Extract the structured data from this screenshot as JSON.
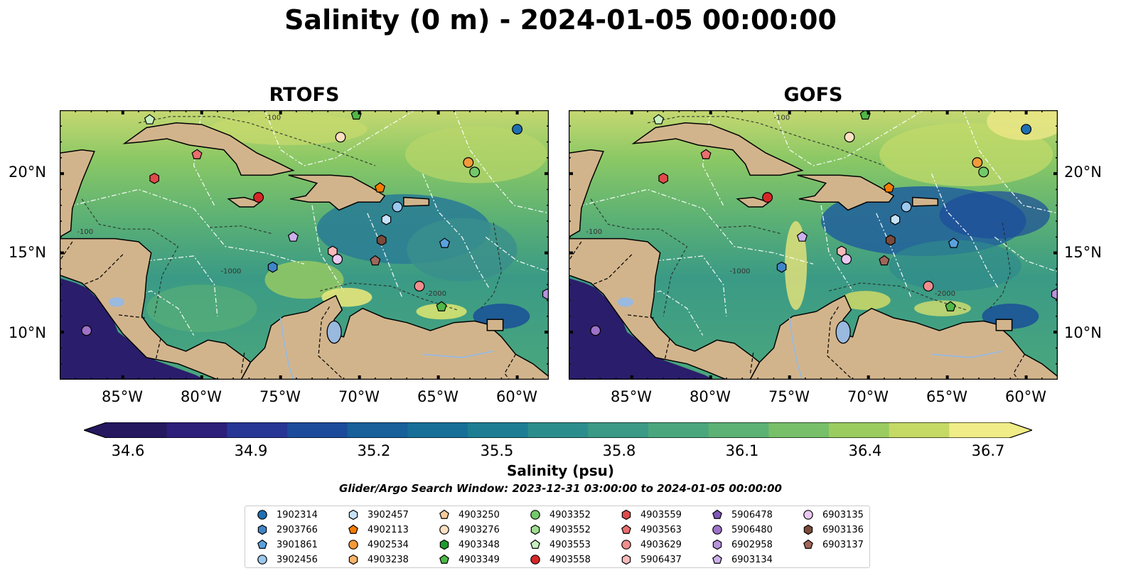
{
  "title": "Salinity (0 m) - 2024-01-05 00:00:00",
  "panels": [
    {
      "title": "RTOFS"
    },
    {
      "title": "GOFS"
    }
  ],
  "map": {
    "lon_range": [
      -89,
      -58
    ],
    "lat_range": [
      7,
      24
    ],
    "lon_ticks": [
      "85°W",
      "80°W",
      "75°W",
      "70°W",
      "65°W",
      "60°W"
    ],
    "lat_ticks": [
      "20°N",
      "15°N",
      "10°N"
    ],
    "lon_tick_values": [
      -85,
      -80,
      -75,
      -70,
      -65,
      -60
    ],
    "lat_tick_values": [
      20,
      15,
      10
    ],
    "contour_labels": [
      "-100",
      "-1000",
      "-2000"
    ],
    "colors": {
      "land": "#d2b48c",
      "lake": "#99b9df",
      "pacific": "#2a1d6b"
    }
  },
  "colorbar": {
    "label": "Salinity (psu)",
    "ticks": [
      "34.6",
      "34.9",
      "35.2",
      "35.5",
      "35.8",
      "36.1",
      "36.4",
      "36.7"
    ],
    "min": 34.6,
    "max": 36.7,
    "colors": [
      "#26185f",
      "#2c1f7a",
      "#273595",
      "#1c4b9b",
      "#17609a",
      "#176f97",
      "#1d7e93",
      "#2c8e8c",
      "#3a9a85",
      "#4aa77d",
      "#5cb174",
      "#77bf69",
      "#9acc5f",
      "#c5d965",
      "#f0ec87"
    ]
  },
  "search_window": "Glider/Argo Search Window: 2023-12-31 03:00:00 to 2024-01-05 00:00:00",
  "legend": [
    {
      "id": "1902314",
      "marker": "circle",
      "color": "#1f6fb2"
    },
    {
      "id": "2903766",
      "marker": "hexagon",
      "color": "#3f85c8"
    },
    {
      "id": "3901861",
      "marker": "pentagon",
      "color": "#5aa2df"
    },
    {
      "id": "3902456",
      "marker": "circle",
      "color": "#9cc8ee"
    },
    {
      "id": "3902457",
      "marker": "hexagon",
      "color": "#c6e2f8"
    },
    {
      "id": "4902113",
      "marker": "pentagon",
      "color": "#f57c00"
    },
    {
      "id": "4902534",
      "marker": "circle",
      "color": "#f59a3a"
    },
    {
      "id": "4903238",
      "marker": "hexagon",
      "color": "#f8b46a"
    },
    {
      "id": "4903250",
      "marker": "pentagon",
      "color": "#fbcb9a"
    },
    {
      "id": "4903276",
      "marker": "circle",
      "color": "#fde0c2"
    },
    {
      "id": "4903348",
      "marker": "hexagon",
      "color": "#1f9a2e"
    },
    {
      "id": "4903349",
      "marker": "pentagon",
      "color": "#4fb848"
    },
    {
      "id": "4903352",
      "marker": "circle",
      "color": "#73c96a"
    },
    {
      "id": "4903552",
      "marker": "hexagon",
      "color": "#9fdc91"
    },
    {
      "id": "4903553",
      "marker": "pentagon",
      "color": "#c8f0bf"
    },
    {
      "id": "4903558",
      "marker": "circle",
      "color": "#d62728"
    },
    {
      "id": "4903559",
      "marker": "hexagon",
      "color": "#e04a4a"
    },
    {
      "id": "4903563",
      "marker": "pentagon",
      "color": "#ea6e6e"
    },
    {
      "id": "4903629",
      "marker": "circle",
      "color": "#f08d8d"
    },
    {
      "id": "5906437",
      "marker": "hexagon",
      "color": "#f9b9b9"
    },
    {
      "id": "5906478",
      "marker": "pentagon",
      "color": "#8058b6"
    },
    {
      "id": "5906480",
      "marker": "circle",
      "color": "#9d72c8"
    },
    {
      "id": "6902958",
      "marker": "hexagon",
      "color": "#b793dc"
    },
    {
      "id": "6903134",
      "marker": "pentagon",
      "color": "#ccb0ec"
    },
    {
      "id": "6903135",
      "marker": "circle",
      "color": "#eac8f2"
    },
    {
      "id": "6903136",
      "marker": "hexagon",
      "color": "#7b4a3a"
    },
    {
      "id": "6903137",
      "marker": "pentagon",
      "color": "#a0665a"
    }
  ],
  "floats_rtofs": [
    {
      "id": "1902314",
      "lon": -60.0,
      "lat": 22.8
    },
    {
      "id": "4903553",
      "lon": -83.3,
      "lat": 23.4
    },
    {
      "id": "4903349",
      "lon": -70.2,
      "lat": 23.7
    },
    {
      "id": "4903276",
      "lon": -71.2,
      "lat": 22.3
    },
    {
      "id": "4903563",
      "lon": -80.3,
      "lat": 21.2
    },
    {
      "id": "4903559",
      "lon": -83.0,
      "lat": 19.7
    },
    {
      "id": "4902534",
      "lon": -63.1,
      "lat": 20.7
    },
    {
      "id": "4903352",
      "lon": -62.7,
      "lat": 20.1
    },
    {
      "id": "4902113",
      "lon": -68.7,
      "lat": 19.1
    },
    {
      "id": "4903558",
      "lon": -76.4,
      "lat": 18.5
    },
    {
      "id": "3902456",
      "lon": -67.6,
      "lat": 17.9
    },
    {
      "id": "3902457",
      "lon": -68.3,
      "lat": 17.1
    },
    {
      "id": "6903134",
      "lon": -74.2,
      "lat": 16.0
    },
    {
      "id": "6903136",
      "lon": -68.6,
      "lat": 15.8
    },
    {
      "id": "3901861",
      "lon": -64.6,
      "lat": 15.6
    },
    {
      "id": "5906437",
      "lon": -71.7,
      "lat": 15.1
    },
    {
      "id": "6903135",
      "lon": -71.4,
      "lat": 14.6
    },
    {
      "id": "6903137",
      "lon": -69.0,
      "lat": 14.5
    },
    {
      "id": "2903766",
      "lon": -75.5,
      "lat": 14.1
    },
    {
      "id": "4903629",
      "lon": -66.2,
      "lat": 12.9
    },
    {
      "id": "4903349",
      "lon": -64.8,
      "lat": 11.6
    },
    {
      "id": "6902958",
      "lon": -58.1,
      "lat": 12.4
    },
    {
      "id": "5906480",
      "lon": -87.3,
      "lat": 10.1
    }
  ],
  "floats_gofs": [
    {
      "id": "1902314",
      "lon": -60.0,
      "lat": 22.8
    },
    {
      "id": "4903553",
      "lon": -83.3,
      "lat": 23.4
    },
    {
      "id": "4903349",
      "lon": -70.2,
      "lat": 23.7
    },
    {
      "id": "4903276",
      "lon": -71.2,
      "lat": 22.3
    },
    {
      "id": "4903563",
      "lon": -80.3,
      "lat": 21.2
    },
    {
      "id": "4903559",
      "lon": -83.0,
      "lat": 19.7
    },
    {
      "id": "4902534",
      "lon": -63.1,
      "lat": 20.7
    },
    {
      "id": "4903352",
      "lon": -62.7,
      "lat": 20.1
    },
    {
      "id": "4902113",
      "lon": -68.7,
      "lat": 19.1
    },
    {
      "id": "4903558",
      "lon": -76.4,
      "lat": 18.5
    },
    {
      "id": "3902456",
      "lon": -67.6,
      "lat": 17.9
    },
    {
      "id": "3902457",
      "lon": -68.3,
      "lat": 17.1
    },
    {
      "id": "6903134",
      "lon": -74.2,
      "lat": 16.0
    },
    {
      "id": "6903136",
      "lon": -68.6,
      "lat": 15.8
    },
    {
      "id": "3901861",
      "lon": -64.6,
      "lat": 15.6
    },
    {
      "id": "5906437",
      "lon": -71.7,
      "lat": 15.1
    },
    {
      "id": "6903135",
      "lon": -71.4,
      "lat": 14.6
    },
    {
      "id": "6903137",
      "lon": -69.0,
      "lat": 14.5
    },
    {
      "id": "2903766",
      "lon": -75.5,
      "lat": 14.1
    },
    {
      "id": "4903629",
      "lon": -66.2,
      "lat": 12.9
    },
    {
      "id": "4903349",
      "lon": -64.8,
      "lat": 11.6
    },
    {
      "id": "6902958",
      "lon": -58.1,
      "lat": 12.4
    },
    {
      "id": "5906480",
      "lon": -87.3,
      "lat": 10.1
    }
  ]
}
